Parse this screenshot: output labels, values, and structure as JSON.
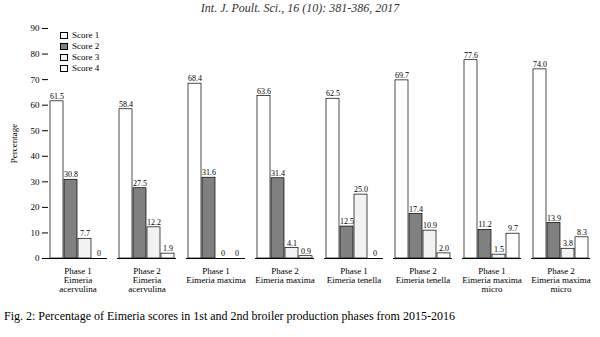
{
  "chart_data": {
    "type": "bar",
    "title": "Int. J. Poult. Sci., 16 (10): 381-386, 2017",
    "caption": "Fig. 2: Percentage of Eimeria scores in 1st and 2nd broiler production phases from 2015-2016",
    "y_label": "Percentage",
    "categories": [
      "Phase 1\nEimeria\nacervulina",
      "Phase 2\nEimeria\nacervulina",
      "Phase 1\nEimeria maxima",
      "Phase 2\nEimeria maxima",
      "Phase 1\nEimeria tenella",
      "Phase 2\nEimeria tenella",
      "Phase 1\nEimeria maxima\nmicro",
      "Phase 2\nEimeria maxima\nmicro"
    ],
    "series": [
      {
        "name": "Score 1",
        "color": "#ffffff",
        "values": [
          61.5,
          58.4,
          68.4,
          63.6,
          62.5,
          69.7,
          77.6,
          74.0
        ],
        "value_labels": [
          "61.5",
          "58.4",
          "68.4",
          "63.6",
          "62.5",
          "69.7",
          "77.6",
          "74.0"
        ]
      },
      {
        "name": "Score 2",
        "color": "#808080",
        "values": [
          30.8,
          27.5,
          31.6,
          31.4,
          12.5,
          17.4,
          11.2,
          13.9
        ],
        "value_labels": [
          "30.8",
          "27.5",
          "31.6",
          "31.4",
          "12.5",
          "17.4",
          "11.2",
          "13.9"
        ]
      },
      {
        "name": "Score 3",
        "color": "#f2f2f2",
        "values": [
          7.7,
          12.2,
          0,
          4.1,
          25.0,
          10.9,
          1.5,
          3.8
        ],
        "value_labels": [
          "7.7",
          "12.2",
          "0",
          "4.1",
          "25.0",
          "10.9",
          "1.5",
          "3.8"
        ]
      },
      {
        "name": "Score 4",
        "color": "#ffffff",
        "values": [
          0,
          1.9,
          0,
          0.9,
          0,
          2.0,
          9.7,
          8.3
        ],
        "value_labels": [
          "0",
          "1.9",
          "0",
          "0.9",
          "0",
          "2.0",
          "9.7",
          "8.3"
        ]
      }
    ],
    "ylim": [
      0,
      90
    ],
    "yticks": [
      0,
      10,
      20,
      30,
      40,
      50,
      60,
      70,
      80,
      90
    ],
    "grid": false,
    "data_labels": true,
    "legend": "top-left"
  }
}
